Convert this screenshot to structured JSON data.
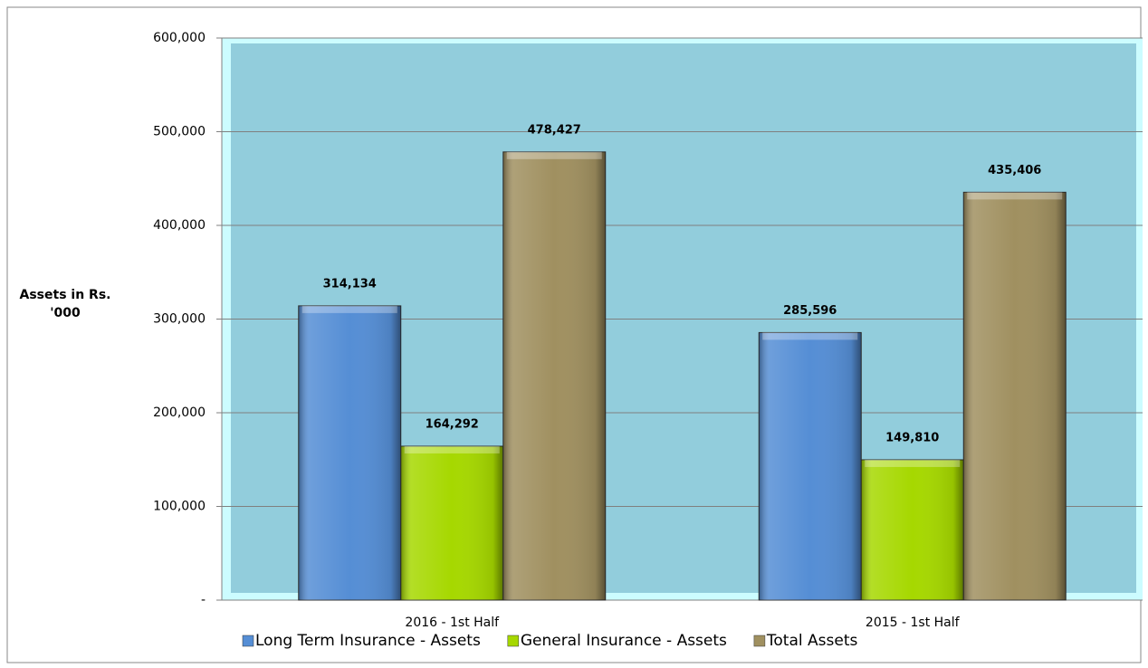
{
  "chart_data": {
    "type": "bar",
    "y_axis_label": "Assets in Rs. '000",
    "categories": [
      "2016 - 1st Half",
      "2015 - 1st Half"
    ],
    "series": [
      {
        "name": "Long Term Insurance - Assets",
        "color": "#558ed5",
        "values": [
          314134,
          285596
        ],
        "value_labels": [
          "314,134",
          "285,596"
        ]
      },
      {
        "name": "General Insurance - Assets",
        "color": "#a6d800",
        "values": [
          164292,
          149810
        ],
        "value_labels": [
          "164,292",
          "149,810"
        ]
      },
      {
        "name": "Total Assets",
        "color": "#a09060",
        "values": [
          478427,
          435406
        ],
        "value_labels": [
          "478,427",
          "435,406"
        ]
      }
    ],
    "ylim": [
      0,
      600000
    ],
    "yticks": [
      {
        "value": 0,
        "label": "-"
      },
      {
        "value": 100000,
        "label": "100,000"
      },
      {
        "value": 200000,
        "label": "200,000"
      },
      {
        "value": 300000,
        "label": "300,000"
      },
      {
        "value": 400000,
        "label": "400,000"
      },
      {
        "value": 500000,
        "label": "500,000"
      },
      {
        "value": 600000,
        "label": "600,000"
      }
    ],
    "grid": true,
    "legend": "bottom"
  }
}
